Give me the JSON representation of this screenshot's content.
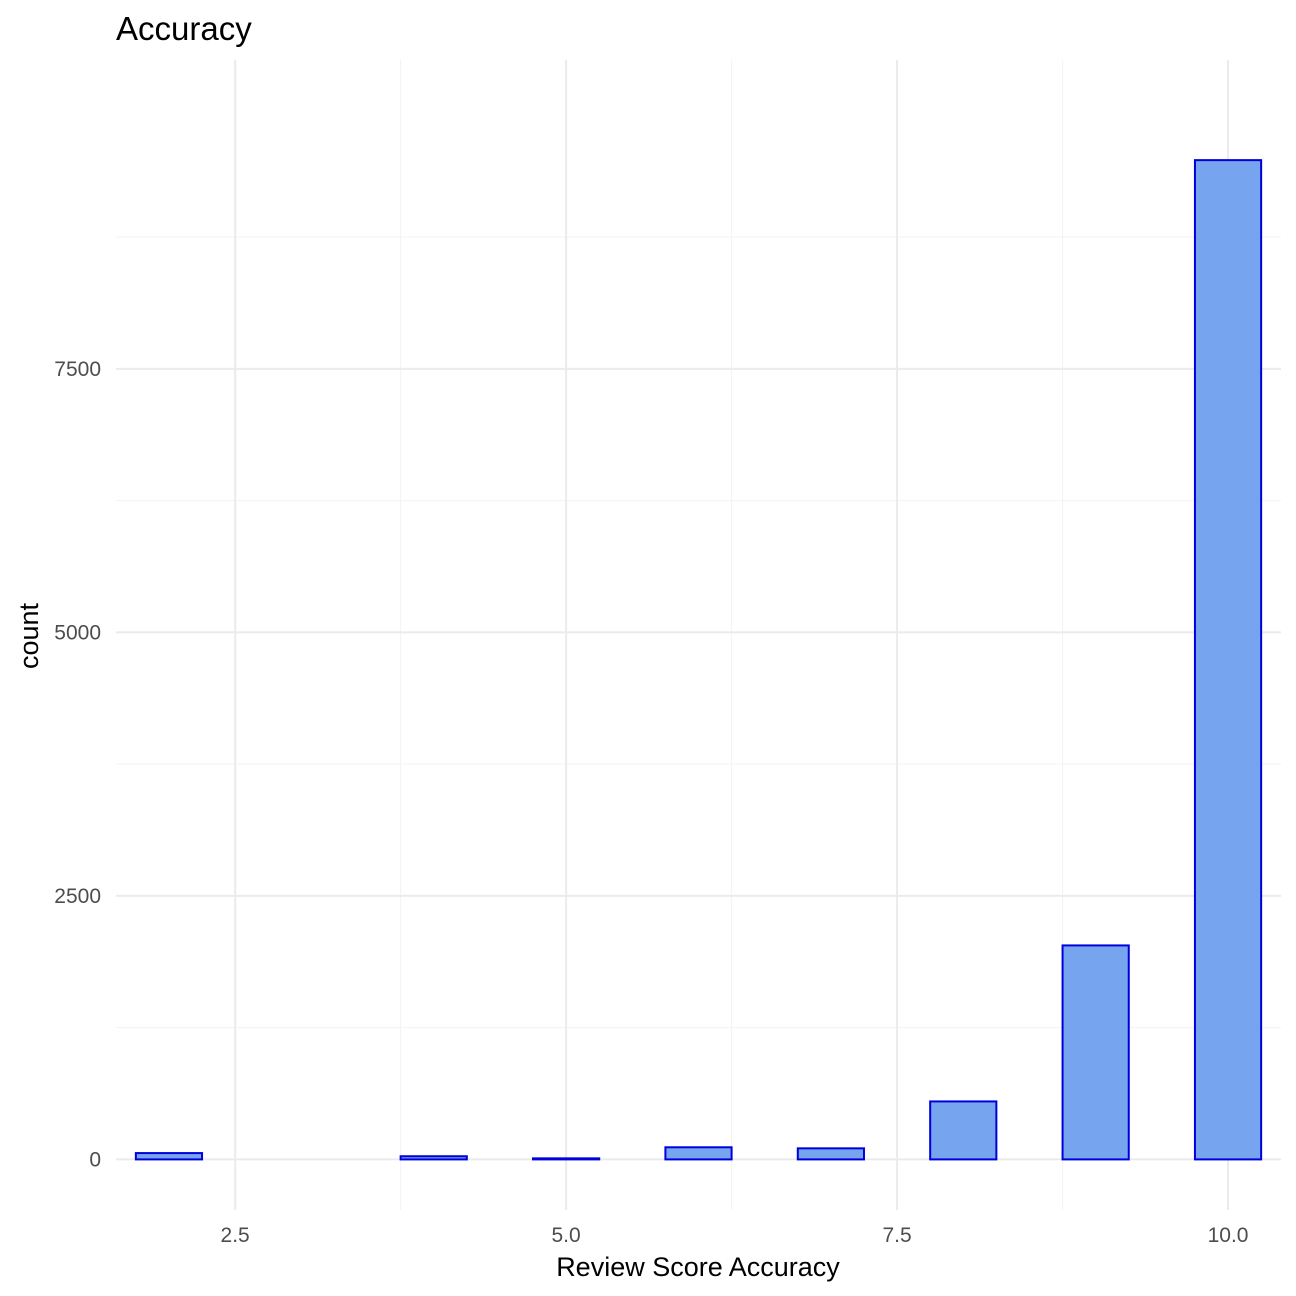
{
  "chart_data": {
    "type": "bar",
    "title": "Accuracy",
    "xlabel": "Review Score Accuracy",
    "ylabel": "count",
    "x": [
      2,
      4,
      5,
      6,
      7,
      8,
      9,
      10
    ],
    "values": [
      60,
      30,
      10,
      115,
      105,
      550,
      2030,
      9480
    ],
    "bar_width": 0.5,
    "xlim": [
      1.6,
      10.4
    ],
    "ylim": [
      -480,
      10430
    ],
    "x_ticks": [
      2.5,
      5.0,
      7.5,
      10.0
    ],
    "x_tick_labels": [
      "2.5",
      "5.0",
      "7.5",
      "10.0"
    ],
    "y_ticks": [
      0,
      2500,
      5000,
      7500
    ],
    "y_tick_labels": [
      "0",
      "2500",
      "5000",
      "7500"
    ],
    "grid": true,
    "legend": "none",
    "colors": {
      "fill": "#77a4ee",
      "stroke": "#0000dd"
    }
  }
}
